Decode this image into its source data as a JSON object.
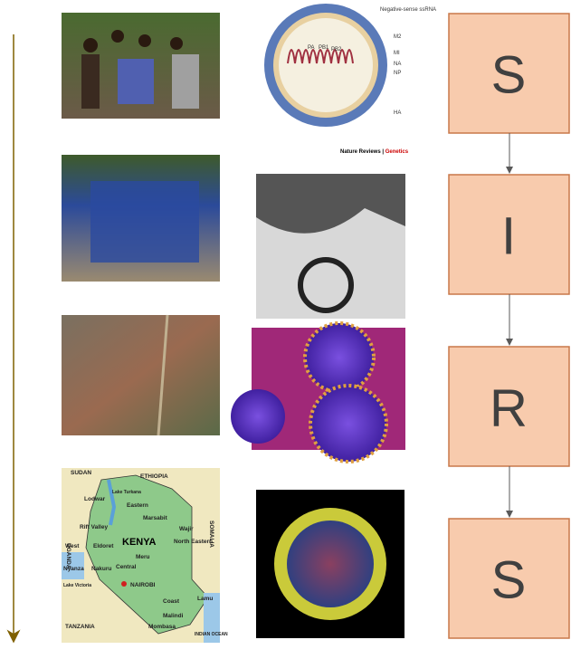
{
  "stages": [
    {
      "label": "S"
    },
    {
      "label": "I"
    },
    {
      "label": "R"
    },
    {
      "label": "S"
    }
  ],
  "virus_diagram": {
    "labels": [
      "Negative-sense ssRNA",
      "M2",
      "MI",
      "NA",
      "NP",
      "HA",
      "PA",
      "PB1",
      "PB2"
    ],
    "credit_source": "Nature Reviews",
    "credit_journal": "Genetics"
  },
  "map": {
    "labels": [
      "SUDAN",
      "ETHIOPIA",
      "UGANDA",
      "SOMALIA",
      "TANZANIA",
      "KENYA",
      "Lodwar",
      "Lake Turkana",
      "Eastern",
      "Marsabit",
      "Rift Valley",
      "Wajir",
      "West",
      "Eldoret",
      "North Eastern",
      "Meru",
      "Nyanza",
      "Nakuru",
      "Central",
      "NAIROBI",
      "Lake Victoria",
      "Coast",
      "Lamu",
      "Malindi",
      "Mombasa",
      "INDIAN OCEAN"
    ]
  }
}
